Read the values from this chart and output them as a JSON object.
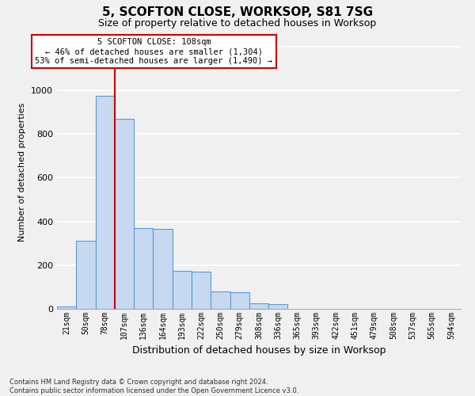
{
  "title": "5, SCOFTON CLOSE, WORKSOP, S81 7SG",
  "subtitle": "Size of property relative to detached houses in Worksop",
  "xlabel": "Distribution of detached houses by size in Worksop",
  "ylabel": "Number of detached properties",
  "footer": "Contains HM Land Registry data © Crown copyright and database right 2024.\nContains public sector information licensed under the Open Government Licence v3.0.",
  "categories": [
    "21sqm",
    "50sqm",
    "78sqm",
    "107sqm",
    "136sqm",
    "164sqm",
    "193sqm",
    "222sqm",
    "250sqm",
    "279sqm",
    "308sqm",
    "336sqm",
    "365sqm",
    "393sqm",
    "422sqm",
    "451sqm",
    "479sqm",
    "508sqm",
    "537sqm",
    "565sqm",
    "594sqm"
  ],
  "values": [
    10,
    313,
    975,
    870,
    370,
    365,
    175,
    170,
    80,
    75,
    25,
    20,
    0,
    0,
    0,
    0,
    0,
    0,
    0,
    0,
    0
  ],
  "bar_color": "#c6d9f0",
  "bar_edge_color": "#5b9bd5",
  "property_line_x": 2.5,
  "property_line_color": "#cc0000",
  "annotation_text": "5 SCOFTON CLOSE: 108sqm\n← 46% of detached houses are smaller (1,304)\n53% of semi-detached houses are larger (1,490) →",
  "annotation_box_color": "#ffffff",
  "annotation_box_edge": "#cc0000",
  "ylim": [
    0,
    1250
  ],
  "yticks": [
    0,
    200,
    400,
    600,
    800,
    1000,
    1200
  ],
  "background_color": "#f0f0f0",
  "grid_color": "#ffffff",
  "title_fontsize": 11,
  "subtitle_fontsize": 9,
  "footer_fontsize": 6,
  "ylabel_fontsize": 8,
  "xlabel_fontsize": 9
}
